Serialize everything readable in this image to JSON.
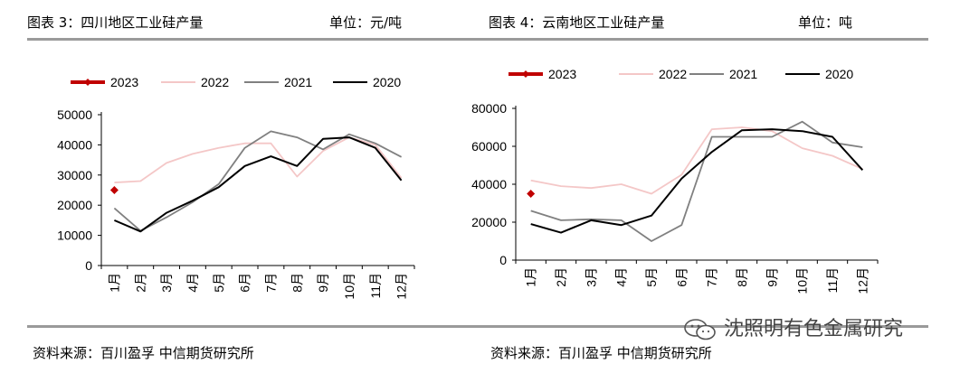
{
  "header": {
    "left_title": "图表 3：四川地区工业硅产量",
    "left_unit": "单位：元/吨",
    "right_title": "图表 4：云南地区工业硅产量",
    "right_unit": "单位：吨"
  },
  "footer": {
    "left_source": "资料来源：百川盈孚 中信期货研究所",
    "right_source": "资料来源：百川盈孚 中信期货研究所"
  },
  "watermark": {
    "text": "沈照明有色金属研究"
  },
  "colors": {
    "2023": "#c00000",
    "2022": "#f4c7c7",
    "2021": "#808080",
    "2020": "#000000",
    "rule": "#9a9a9a"
  },
  "chart_data": [
    {
      "type": "line",
      "categories": [
        "1月",
        "2月",
        "3月",
        "4月",
        "5月",
        "6月",
        "7月",
        "8月",
        "9月",
        "10月",
        "11月",
        "12月"
      ],
      "ylim": [
        0,
        50000
      ],
      "yticks": [
        "0",
        "10000",
        "20000",
        "30000",
        "40000",
        "50000"
      ],
      "grid": false,
      "legend": "top",
      "series": [
        {
          "name": "2023",
          "marker": "diamond",
          "values": [
            25000,
            null,
            null,
            null,
            null,
            null,
            null,
            null,
            null,
            null,
            null,
            null
          ]
        },
        {
          "name": "2022",
          "values": [
            27500,
            28000,
            34000,
            37000,
            39000,
            40500,
            40500,
            29500,
            38000,
            42500,
            40000,
            29000
          ]
        },
        {
          "name": "2021",
          "values": [
            19000,
            11500,
            16000,
            21000,
            27000,
            39000,
            44500,
            42500,
            38500,
            43500,
            40500,
            36000
          ]
        },
        {
          "name": "2020",
          "values": [
            15000,
            11300,
            17500,
            21500,
            26000,
            33000,
            36200,
            33000,
            42000,
            42500,
            39000,
            28200
          ]
        }
      ]
    },
    {
      "type": "line",
      "categories": [
        "1月",
        "2月",
        "3月",
        "4月",
        "5月",
        "6月",
        "7月",
        "8月",
        "9月",
        "10月",
        "11月",
        "12月"
      ],
      "ylim": [
        0,
        80000
      ],
      "yticks": [
        "0",
        "20000",
        "40000",
        "60000",
        "80000"
      ],
      "grid": false,
      "legend": "top",
      "series": [
        {
          "name": "2023",
          "marker": "diamond",
          "values": [
            35000,
            null,
            null,
            null,
            null,
            null,
            null,
            null,
            null,
            null,
            null,
            null
          ]
        },
        {
          "name": "2022",
          "values": [
            42000,
            39000,
            38000,
            40000,
            35000,
            45000,
            69000,
            70000,
            68000,
            59000,
            55000,
            48000
          ]
        },
        {
          "name": "2021",
          "values": [
            26000,
            21000,
            21500,
            21000,
            10000,
            18500,
            65000,
            65000,
            65000,
            73000,
            62000,
            59500
          ]
        },
        {
          "name": "2020",
          "values": [
            19000,
            14500,
            21000,
            18500,
            23500,
            43000,
            57000,
            68500,
            69000,
            68000,
            65000,
            47500
          ]
        }
      ]
    }
  ]
}
